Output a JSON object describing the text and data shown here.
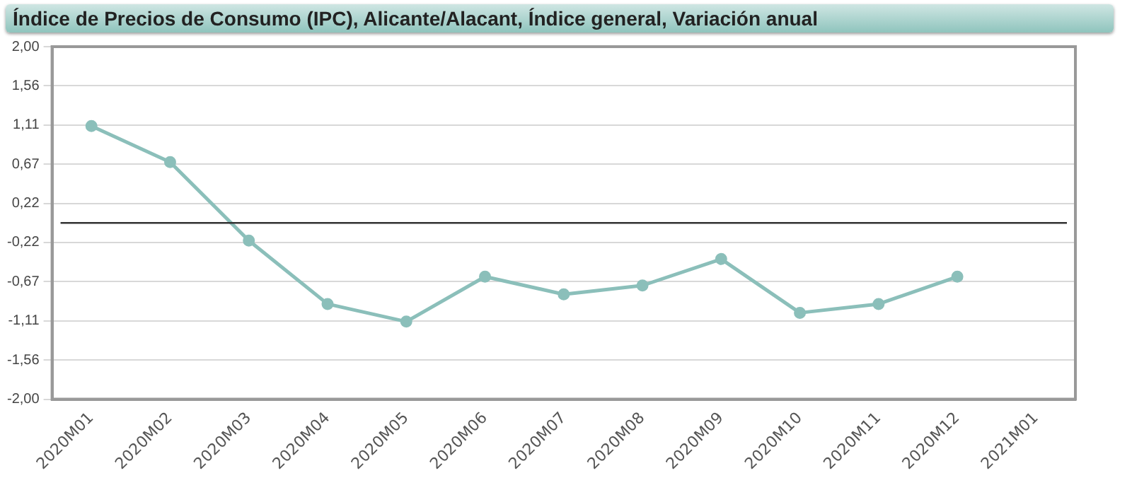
{
  "chart_data": {
    "type": "line",
    "title": "Índice de Precios de Consumo (IPC), Alicante/Alacant, Índice general, Variación anual",
    "categories": [
      "2020M01",
      "2020M02",
      "2020M03",
      "2020M04",
      "2020M05",
      "2020M06",
      "2020M07",
      "2020M08",
      "2020M09",
      "2020M10",
      "2020M11",
      "2020M12",
      "2021M01"
    ],
    "series": [
      {
        "color": "#8bbfba",
        "values": [
          1.1,
          0.69,
          -0.2,
          -0.92,
          -1.12,
          -0.61,
          -0.81,
          -0.71,
          -0.41,
          -1.02,
          -0.92,
          -0.61,
          null
        ]
      }
    ],
    "ylim": [
      -2,
      2
    ],
    "yticks": [
      {
        "value": -2,
        "label": "-2,00"
      },
      {
        "value": -1.556,
        "label": "-1,56"
      },
      {
        "value": -1.111,
        "label": "-1,11"
      },
      {
        "value": -0.667,
        "label": "-0,67"
      },
      {
        "value": -0.222,
        "label": "-0,22"
      },
      {
        "value": 0.222,
        "label": "0,22"
      },
      {
        "value": 0.667,
        "label": "0,67"
      },
      {
        "value": 1.111,
        "label": "1,11"
      },
      {
        "value": 1.556,
        "label": "1,56"
      },
      {
        "value": 2,
        "label": "2,00"
      }
    ],
    "ref_lines": [
      {
        "axis": "y",
        "value": 0,
        "color": "#333333"
      }
    ],
    "grid": "y",
    "legend": false,
    "marker": "circle",
    "line_style": "solid"
  }
}
